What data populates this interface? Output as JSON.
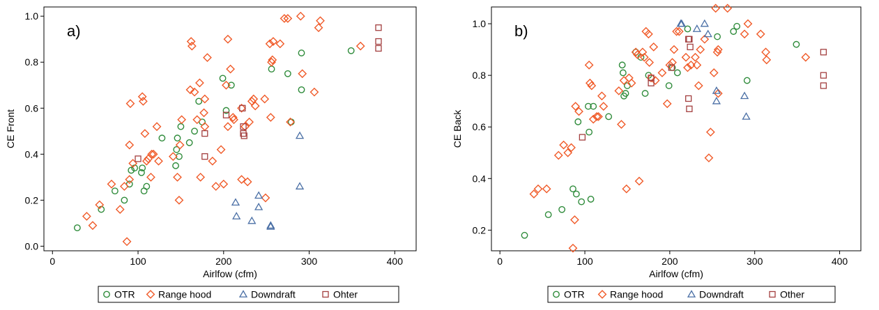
{
  "chart_data": [
    {
      "type": "scatter",
      "panel_label": "a)",
      "xlabel": "Airlfow (cfm)",
      "ylabel": "CE Front",
      "xlim": [
        -10,
        425
      ],
      "ylim": [
        -0.02,
        1.04
      ],
      "xticks": [
        "0",
        "100",
        "200",
        "300",
        "400"
      ],
      "yticks": [
        "0.0",
        "0.2",
        "0.4",
        "0.6",
        "0.8",
        "1.0"
      ],
      "grid": false,
      "legend_position": "bottom",
      "legend": [
        "OTR",
        "Range hood",
        "Downdraft",
        "Ohter"
      ],
      "series": [
        {
          "name": "OTR",
          "marker": "circle",
          "color": "#2e8b3a",
          "points": [
            [
              29,
              0.08
            ],
            [
              57,
              0.16
            ],
            [
              73,
              0.24
            ],
            [
              84,
              0.2
            ],
            [
              90,
              0.27
            ],
            [
              92,
              0.33
            ],
            [
              96,
              0.34
            ],
            [
              104,
              0.32
            ],
            [
              105,
              0.34
            ],
            [
              107,
              0.24
            ],
            [
              110,
              0.26
            ],
            [
              128,
              0.47
            ],
            [
              144,
              0.35
            ],
            [
              145,
              0.42
            ],
            [
              146,
              0.47
            ],
            [
              148,
              0.39
            ],
            [
              150,
              0.52
            ],
            [
              160,
              0.45
            ],
            [
              166,
              0.5
            ],
            [
              171,
              0.63
            ],
            [
              175,
              0.54
            ],
            [
              199,
              0.73
            ],
            [
              203,
              0.59
            ],
            [
              209,
              0.7
            ],
            [
              256,
              0.77
            ],
            [
              275,
              0.75
            ],
            [
              279,
              0.54
            ],
            [
              291,
              0.84
            ],
            [
              291,
              0.68
            ],
            [
              349,
              0.85
            ]
          ]
        },
        {
          "name": "Range hood",
          "marker": "diamond",
          "color": "#f05a28",
          "points": [
            [
              40,
              0.13
            ],
            [
              47,
              0.09
            ],
            [
              55,
              0.18
            ],
            [
              69,
              0.27
            ],
            [
              79,
              0.16
            ],
            [
              84,
              0.26
            ],
            [
              87,
              0.02
            ],
            [
              90,
              0.29
            ],
            [
              90,
              0.44
            ],
            [
              91,
              0.62
            ],
            [
              94,
              0.36
            ],
            [
              105,
              0.65
            ],
            [
              106,
              0.63
            ],
            [
              108,
              0.49
            ],
            [
              110,
              0.37
            ],
            [
              112,
              0.38
            ],
            [
              115,
              0.3
            ],
            [
              116,
              0.4
            ],
            [
              118,
              0.4
            ],
            [
              122,
              0.52
            ],
            [
              124,
              0.37
            ],
            [
              141,
              0.39
            ],
            [
              146,
              0.3
            ],
            [
              149,
              0.44
            ],
            [
              148,
              0.2
            ],
            [
              151,
              0.55
            ],
            [
              161,
              0.68
            ],
            [
              162,
              0.89
            ],
            [
              163,
              0.87
            ],
            [
              166,
              0.67
            ],
            [
              169,
              0.55
            ],
            [
              172,
              0.71
            ],
            [
              173,
              0.3
            ],
            [
              177,
              0.58
            ],
            [
              178,
              0.64
            ],
            [
              178,
              0.52
            ],
            [
              181,
              0.82
            ],
            [
              187,
              0.37
            ],
            [
              191,
              0.26
            ],
            [
              197,
              0.42
            ],
            [
              200,
              0.27
            ],
            [
              203,
              0.7
            ],
            [
              205,
              0.9
            ],
            [
              205,
              0.52
            ],
            [
              208,
              0.77
            ],
            [
              211,
              0.56
            ],
            [
              212,
              0.55
            ],
            [
              221,
              0.6
            ],
            [
              221,
              0.29
            ],
            [
              225,
              0.52
            ],
            [
              228,
              0.28
            ],
            [
              230,
              0.54
            ],
            [
              233,
              0.63
            ],
            [
              235,
              0.64
            ],
            [
              237,
              0.61
            ],
            [
              248,
              0.64
            ],
            [
              249,
              0.21
            ],
            [
              254,
              0.88
            ],
            [
              255,
              0.56
            ],
            [
              256,
              0.8
            ],
            [
              257,
              0.81
            ],
            [
              258,
              0.89
            ],
            [
              266,
              0.88
            ],
            [
              271,
              0.99
            ],
            [
              275,
              0.99
            ],
            [
              278,
              0.54
            ],
            [
              290,
              1.0
            ],
            [
              292,
              0.75
            ],
            [
              306,
              0.67
            ],
            [
              311,
              0.95
            ],
            [
              313,
              0.98
            ],
            [
              360,
              0.87
            ]
          ]
        },
        {
          "name": "Downdraft",
          "marker": "triangle",
          "color": "#4a6fa5",
          "points": [
            [
              214,
              0.19
            ],
            [
              215,
              0.13
            ],
            [
              233,
              0.11
            ],
            [
              241,
              0.22
            ],
            [
              241,
              0.17
            ],
            [
              255,
              0.09
            ],
            [
              255,
              0.085
            ],
            [
              289,
              0.48
            ],
            [
              289,
              0.26
            ]
          ]
        },
        {
          "name": "Ohter",
          "marker": "square",
          "color": "#a33f3f",
          "points": [
            [
              100,
              0.38
            ],
            [
              178,
              0.49
            ],
            [
              178,
              0.39
            ],
            [
              203,
              0.57
            ],
            [
              222,
              0.6
            ],
            [
              223,
              0.52
            ],
            [
              223,
              0.49
            ],
            [
              224,
              0.48
            ],
            [
              381,
              0.95
            ],
            [
              381,
              0.89
            ],
            [
              381,
              0.86
            ]
          ]
        }
      ]
    },
    {
      "type": "scatter",
      "panel_label": "b)",
      "xlabel": "Airlfow (cfm)",
      "ylabel": "CE Back",
      "xlim": [
        -10,
        425
      ],
      "ylim": [
        0.12,
        1.065
      ],
      "xticks": [
        "0",
        "100",
        "200",
        "300",
        "400"
      ],
      "yticks": [
        "0.2",
        "0.4",
        "0.6",
        "0.8",
        "1.0"
      ],
      "grid": false,
      "legend_position": "bottom",
      "legend": [
        "OTR",
        "Range hood",
        "Downdraft",
        "Other"
      ],
      "series": [
        {
          "name": "OTR",
          "marker": "circle",
          "color": "#2e8b3a",
          "points": [
            [
              29,
              0.18
            ],
            [
              57,
              0.26
            ],
            [
              73,
              0.28
            ],
            [
              86,
              0.36
            ],
            [
              90,
              0.34
            ],
            [
              92,
              0.62
            ],
            [
              96,
              0.31
            ],
            [
              104,
              0.68
            ],
            [
              105,
              0.58
            ],
            [
              107,
              0.32
            ],
            [
              110,
              0.68
            ],
            [
              128,
              0.64
            ],
            [
              144,
              0.84
            ],
            [
              145,
              0.81
            ],
            [
              146,
              0.72
            ],
            [
              148,
              0.73
            ],
            [
              150,
              0.76
            ],
            [
              160,
              0.89
            ],
            [
              166,
              0.87
            ],
            [
              171,
              0.73
            ],
            [
              175,
              0.8
            ],
            [
              199,
              0.76
            ],
            [
              203,
              0.83
            ],
            [
              209,
              0.81
            ],
            [
              221,
              0.98
            ],
            [
              256,
              0.95
            ],
            [
              275,
              0.97
            ],
            [
              279,
              0.99
            ],
            [
              291,
              0.78
            ],
            [
              349,
              0.92
            ]
          ]
        },
        {
          "name": "Range hood",
          "marker": "diamond",
          "color": "#f05a28",
          "points": [
            [
              40,
              0.34
            ],
            [
              45,
              0.36
            ],
            [
              55,
              0.36
            ],
            [
              69,
              0.49
            ],
            [
              75,
              0.53
            ],
            [
              80,
              0.5
            ],
            [
              84,
              0.52
            ],
            [
              86,
              0.13
            ],
            [
              88,
              0.24
            ],
            [
              89,
              0.68
            ],
            [
              93,
              0.66
            ],
            [
              105,
              0.84
            ],
            [
              106,
              0.77
            ],
            [
              108,
              0.76
            ],
            [
              110,
              0.63
            ],
            [
              114,
              0.64
            ],
            [
              116,
              0.64
            ],
            [
              120,
              0.72
            ],
            [
              122,
              0.68
            ],
            [
              140,
              0.74
            ],
            [
              143,
              0.61
            ],
            [
              146,
              0.78
            ],
            [
              149,
              0.36
            ],
            [
              152,
              0.79
            ],
            [
              155,
              0.77
            ],
            [
              160,
              0.89
            ],
            [
              162,
              0.88
            ],
            [
              164,
              0.39
            ],
            [
              168,
              0.89
            ],
            [
              170,
              0.87
            ],
            [
              172,
              0.97
            ],
            [
              175,
              0.96
            ],
            [
              176,
              0.85
            ],
            [
              178,
              0.79
            ],
            [
              181,
              0.91
            ],
            [
              183,
              0.78
            ],
            [
              191,
              0.81
            ],
            [
              197,
              0.69
            ],
            [
              200,
              0.84
            ],
            [
              203,
              0.85
            ],
            [
              205,
              0.9
            ],
            [
              208,
              0.97
            ],
            [
              211,
              0.97
            ],
            [
              219,
              0.87
            ],
            [
              221,
              0.83
            ],
            [
              225,
              0.84
            ],
            [
              230,
              0.87
            ],
            [
              232,
              0.84
            ],
            [
              234,
              0.76
            ],
            [
              236,
              0.9
            ],
            [
              241,
              0.94
            ],
            [
              246,
              0.48
            ],
            [
              248,
              0.58
            ],
            [
              252,
              0.81
            ],
            [
              254,
              1.06
            ],
            [
              256,
              0.89
            ],
            [
              257,
              0.9
            ],
            [
              257,
              0.73
            ],
            [
              268,
              1.06
            ],
            [
              288,
              0.96
            ],
            [
              292,
              1.0
            ],
            [
              307,
              0.96
            ],
            [
              313,
              0.89
            ],
            [
              314,
              0.86
            ],
            [
              360,
              0.87
            ]
          ]
        },
        {
          "name": "Downdraft",
          "marker": "triangle",
          "color": "#4a6fa5",
          "points": [
            [
              213,
              1.0
            ],
            [
              214,
              1.0
            ],
            [
              232,
              0.98
            ],
            [
              241,
              1.0
            ],
            [
              245,
              0.96
            ],
            [
              255,
              0.74
            ],
            [
              255,
              0.7
            ],
            [
              288,
              0.72
            ],
            [
              290,
              0.64
            ]
          ]
        },
        {
          "name": "Other",
          "marker": "square",
          "color": "#a33f3f",
          "points": [
            [
              97,
              0.56
            ],
            [
              178,
              0.79
            ],
            [
              178,
              0.77
            ],
            [
              202,
              0.83
            ],
            [
              222,
              0.94
            ],
            [
              223,
              0.94
            ],
            [
              224,
              0.91
            ],
            [
              222,
              0.71
            ],
            [
              223,
              0.67
            ],
            [
              381,
              0.89
            ],
            [
              381,
              0.8
            ],
            [
              381,
              0.76
            ]
          ]
        }
      ]
    }
  ]
}
